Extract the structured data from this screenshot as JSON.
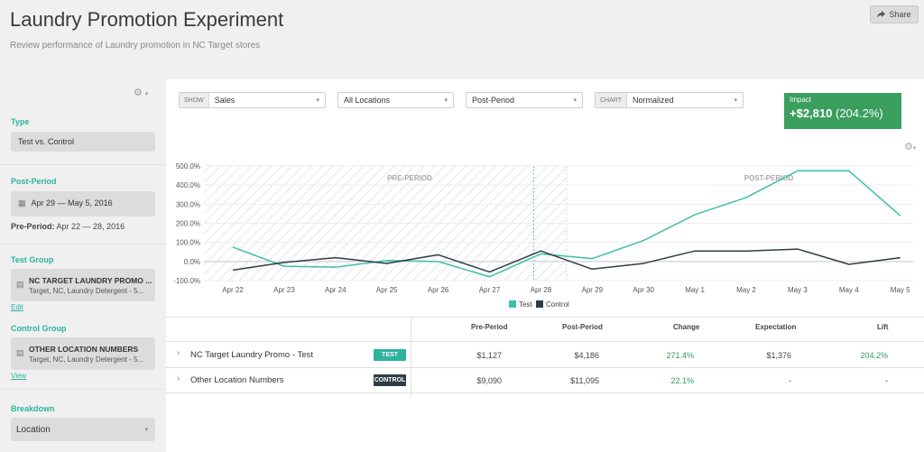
{
  "header": {
    "title": "Laundry Promotion Experiment",
    "subtitle": "Review performance of Laundry promotion in NC Target stores",
    "share_label": "Share"
  },
  "sidebar": {
    "type_label": "Type",
    "type_value": "Test vs. Control",
    "post_period_label": "Post-Period",
    "post_period_value": "Apr 29 — May 5, 2016",
    "pre_period_prefix": "Pre-Period:",
    "pre_period_value": "Apr 22 — 28, 2016",
    "test_group_label": "Test Group",
    "test_group_name": "NC TARGET LAUNDRY PROMO ...",
    "test_group_desc": "Target, NC, Laundry Detergent - 5...",
    "test_group_link": "Edit",
    "control_group_label": "Control Group",
    "control_group_name": "OTHER LOCATION NUMBERS",
    "control_group_desc": "Target, NC, Laundry Detergent - 5...",
    "control_group_link": "View",
    "breakdown_label": "Breakdown",
    "breakdown_value": "Location"
  },
  "filters": {
    "show_tag": "SHOW",
    "show_value": "Sales",
    "locations_value": "All Locations",
    "period_value": "Post-Period",
    "chart_tag": "CHART",
    "chart_value": "Normalized"
  },
  "impact": {
    "label": "Impact",
    "value": "+$2,810",
    "percent": "(204.2%)"
  },
  "colors": {
    "accent": "#2bb39c",
    "test": "#3cc0a4",
    "control": "#2e3d45",
    "impact_bg": "#3a9e5d",
    "positive": "#2f9c5a"
  },
  "chart_data": {
    "type": "line",
    "x": [
      "Apr 22",
      "Apr 23",
      "Apr 24",
      "Apr 25",
      "Apr 26",
      "Apr 27",
      "Apr 28",
      "Apr 29",
      "Apr 30",
      "May 1",
      "May 2",
      "May 3",
      "May 4",
      "May 5"
    ],
    "series": [
      {
        "name": "Test",
        "values": [
          75,
          -25,
          -30,
          5,
          0,
          -80,
          40,
          15,
          110,
          245,
          335,
          475,
          475,
          240
        ]
      },
      {
        "name": "Control",
        "values": [
          -45,
          -5,
          20,
          -10,
          35,
          -55,
          55,
          -40,
          -10,
          55,
          55,
          65,
          -15,
          20
        ]
      }
    ],
    "yticks": [
      "500.0%",
      "400.0%",
      "300.0%",
      "200.0%",
      "100.0%",
      "0.0%",
      "-100.0%"
    ],
    "ylim": [
      -100,
      500
    ],
    "regions": [
      {
        "label": "PRE-PERIOD",
        "from": "Apr 22",
        "to": "Apr 28"
      },
      {
        "label": "POST-PERIOD",
        "from": "Apr 29",
        "to": "May 5"
      }
    ],
    "legend": [
      "Test",
      "Control"
    ],
    "legend_position": "bottom-center",
    "grid": true
  },
  "table": {
    "headers": {
      "pre": "Pre-Period",
      "post": "Post-Period",
      "change": "Change",
      "expectation": "Expectation",
      "lift": "Lift"
    },
    "rows": [
      {
        "name": "NC Target Laundry Promo - Test",
        "badge": "TEST",
        "pre": "$1,127",
        "post": "$4,186",
        "change": "271.4%",
        "expectation": "$1,376",
        "lift": "204.2%"
      },
      {
        "name": "Other Location Numbers",
        "badge": "CONTROL",
        "pre": "$9,090",
        "post": "$11,095",
        "change": "22.1%",
        "expectation": "-",
        "lift": "-"
      }
    ]
  }
}
